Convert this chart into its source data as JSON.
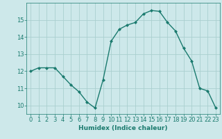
{
  "x": [
    0,
    1,
    2,
    3,
    4,
    5,
    6,
    7,
    8,
    9,
    10,
    11,
    12,
    13,
    14,
    15,
    16,
    17,
    18,
    19,
    20,
    21,
    22,
    23
  ],
  "y": [
    12.0,
    12.2,
    12.2,
    12.2,
    11.7,
    11.2,
    10.8,
    10.2,
    9.85,
    11.5,
    13.75,
    14.45,
    14.7,
    14.85,
    15.35,
    15.55,
    15.5,
    14.85,
    14.35,
    13.35,
    12.6,
    11.0,
    10.85,
    9.85
  ],
  "line_color": "#1a7a6e",
  "marker": "D",
  "marker_size": 2.0,
  "bg_color": "#cde8ea",
  "grid_color": "#aacfcf",
  "xlabel": "Humidex (Indice chaleur)",
  "ylim": [
    9.5,
    16.0
  ],
  "xlim": [
    -0.5,
    23.5
  ],
  "yticks": [
    10,
    11,
    12,
    13,
    14,
    15
  ],
  "xticks": [
    0,
    1,
    2,
    3,
    4,
    5,
    6,
    7,
    8,
    9,
    10,
    11,
    12,
    13,
    14,
    15,
    16,
    17,
    18,
    19,
    20,
    21,
    22,
    23
  ],
  "label_fontsize": 6.5,
  "tick_fontsize": 6.0
}
